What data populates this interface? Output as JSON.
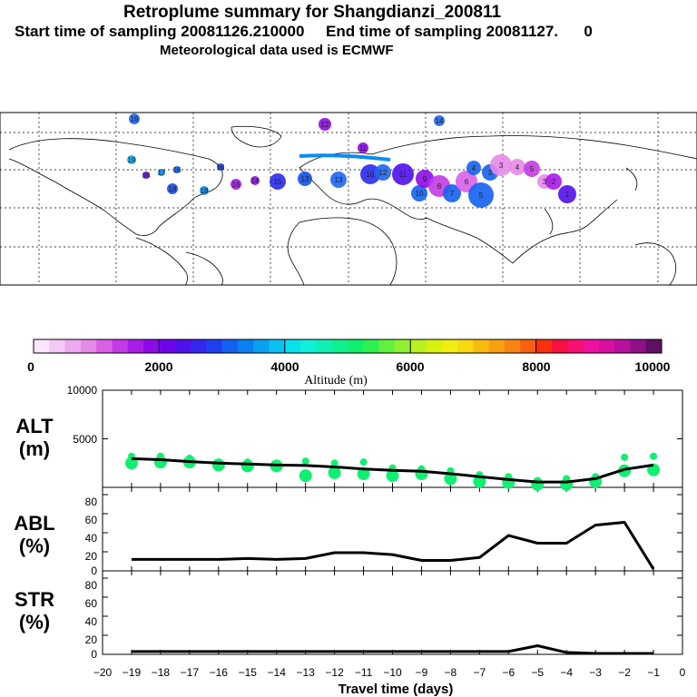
{
  "header": {
    "title": "Retroplume summary for Shangdianzi_200811",
    "sampling": "Start time of sampling 20081126.210000     End time of sampling 20081127.      0",
    "meteo": "Meteorological data used is ECMWF"
  },
  "colorbar": {
    "label": "Altitude (m)",
    "ticks": [
      "0",
      "2000",
      "4000",
      "6000",
      "8000",
      "10000"
    ],
    "colors": [
      "#fce6fc",
      "#f6c8f6",
      "#eeaaee",
      "#e68ae8",
      "#d860e6",
      "#c43ae6",
      "#a81ce8",
      "#8c0ae6",
      "#6c06e8",
      "#5010ec",
      "#3426ee",
      "#1e40f0",
      "#1460f2",
      "#0a80f0",
      "#0aa0f0",
      "#0ac0f0",
      "#0ae0ec",
      "#10f0d8",
      "#10f0b4",
      "#10f090",
      "#10f06c",
      "#30f050",
      "#60f040",
      "#90f030",
      "#b8f020",
      "#d8f010",
      "#f0ee10",
      "#f8d810",
      "#f8bc10",
      "#f8a010",
      "#f88410",
      "#f86010",
      "#f83010",
      "#f81040",
      "#f81070",
      "#f010a0",
      "#d810a0",
      "#b8109c",
      "#901088",
      "#601060"
    ]
  },
  "panels": {
    "alt": {
      "label_line1": "ALT",
      "label_line2": "(m)",
      "yticks": [
        "10000",
        "5000"
      ]
    },
    "abl": {
      "label_line1": "ABL",
      "label_line2": "(%)",
      "yticks": [
        "80",
        "60",
        "40",
        "20",
        "0"
      ]
    },
    "str": {
      "label_line1": "STR",
      "label_line2": "(%)",
      "yticks": [
        "80",
        "60",
        "40",
        "20",
        "0"
      ]
    }
  },
  "chart_data": {
    "type": "line",
    "title": "Retroplume summary for Shangdianzi_200811",
    "xlabel": "Travel time (days)",
    "xlim": [
      -20,
      0
    ],
    "xticks": [
      "−20",
      "−19",
      "−18",
      "−17",
      "−16",
      "−15",
      "−14",
      "−13",
      "−12",
      "−11",
      "−10",
      "−9",
      "−8",
      "−7",
      "−6",
      "−5",
      "−4",
      "−3",
      "−2",
      "−1",
      "0"
    ],
    "x": [
      -19,
      -18,
      -17,
      -16,
      -15,
      -14,
      -13,
      -12,
      -11,
      -10,
      -9,
      -8,
      -7,
      -6,
      -5,
      -4,
      -3,
      -2,
      -1
    ],
    "series": [
      {
        "name": "ALT",
        "unit": "m",
        "ylim": [
          0,
          10000
        ],
        "values": [
          2950,
          2850,
          2650,
          2500,
          2400,
          2300,
          2250,
          2100,
          1900,
          1750,
          1650,
          1400,
          1100,
          800,
          550,
          550,
          900,
          1850,
          2300
        ]
      },
      {
        "name": "ABL",
        "unit": "%",
        "ylim": [
          0,
          90
        ],
        "values": [
          12,
          12,
          12,
          12,
          13,
          12,
          13,
          19,
          19,
          17,
          11,
          11,
          14,
          37,
          29,
          29,
          48,
          51,
          2
        ]
      },
      {
        "name": "STR",
        "unit": "%",
        "ylim": [
          0,
          90
        ],
        "values": [
          3,
          3,
          3,
          3,
          3,
          3,
          3,
          3,
          3,
          3,
          3,
          3,
          3,
          3,
          9,
          2,
          1,
          1,
          1
        ]
      }
    ],
    "alt_spread": [
      {
        "x": -19,
        "y": [
          3200,
          2500
        ]
      },
      {
        "x": -18,
        "y": [
          3200,
          2600
        ]
      },
      {
        "x": -17,
        "y": [
          3000,
          2600
        ]
      },
      {
        "x": -16,
        "y": [
          2600,
          2300
        ]
      },
      {
        "x": -15,
        "y": [
          2600,
          2200
        ]
      },
      {
        "x": -14,
        "y": [
          2500,
          2200
        ]
      },
      {
        "x": -13,
        "y": [
          2700,
          1200
        ]
      },
      {
        "x": -12,
        "y": [
          2500,
          1500
        ]
      },
      {
        "x": -11,
        "y": [
          2600,
          1400
        ]
      },
      {
        "x": -10,
        "y": [
          2000,
          1200
        ]
      },
      {
        "x": -9,
        "y": [
          1900,
          1400
        ]
      },
      {
        "x": -8,
        "y": [
          1700,
          900
        ]
      },
      {
        "x": -7,
        "y": [
          1300,
          600
        ]
      },
      {
        "x": -6,
        "y": [
          1100,
          500
        ]
      },
      {
        "x": -5,
        "y": [
          700,
          300
        ]
      },
      {
        "x": -4,
        "y": [
          900,
          300
        ]
      },
      {
        "x": -3,
        "y": [
          1100,
          600
        ]
      },
      {
        "x": -2,
        "y": [
          3100,
          1700
        ]
      },
      {
        "x": -1,
        "y": [
          3200,
          1800
        ]
      }
    ],
    "map_clusters": [
      {
        "label": "19",
        "color": "#1e66f0"
      },
      {
        "label": "19",
        "color": "#0aa8f0"
      },
      {
        "label": "18",
        "color": "#1450f0"
      },
      {
        "label": "18",
        "color": "#0a8cf0"
      },
      {
        "label": "17",
        "color": "#0a8cf0"
      },
      {
        "label": "16",
        "color": "#6a0ae8"
      },
      {
        "label": "16",
        "color": "#1460f0"
      },
      {
        "label": "16",
        "color": "#1440f0"
      },
      {
        "label": "16",
        "color": "#a018e8"
      },
      {
        "label": "14",
        "color": "#8e0ae8"
      },
      {
        "label": "15",
        "color": "#2a2aee"
      },
      {
        "label": "13",
        "color": "#1450f0"
      },
      {
        "label": "13",
        "color": "#1e66f0"
      },
      {
        "label": "12",
        "color": "#8e0ae8"
      },
      {
        "label": "11",
        "color": "#8e0ae8"
      },
      {
        "label": "10",
        "color": "#2a2aee"
      },
      {
        "label": "12",
        "color": "#1e66f0"
      },
      {
        "label": "11",
        "color": "#5010ec"
      },
      {
        "label": "10",
        "color": "#1460f0"
      },
      {
        "label": "9",
        "color": "#8e0ae8"
      },
      {
        "label": "8",
        "color": "#c43ae6"
      },
      {
        "label": "7",
        "color": "#1460f0"
      },
      {
        "label": "6",
        "color": "#d860e6"
      },
      {
        "label": "5",
        "color": "#1460f0"
      },
      {
        "label": "4",
        "color": "#1460f0"
      },
      {
        "label": "3",
        "color": "#1460f0"
      },
      {
        "label": "3",
        "color": "#e68ae8"
      },
      {
        "label": "4",
        "color": "#e68ae8"
      },
      {
        "label": "5",
        "color": "#c43ae6"
      },
      {
        "label": "3",
        "color": "#e68ae8"
      },
      {
        "label": "2",
        "color": "#a81ce8"
      },
      {
        "label": "1",
        "color": "#5010ec"
      },
      {
        "label": "14",
        "color": "#1e66f0"
      }
    ]
  }
}
